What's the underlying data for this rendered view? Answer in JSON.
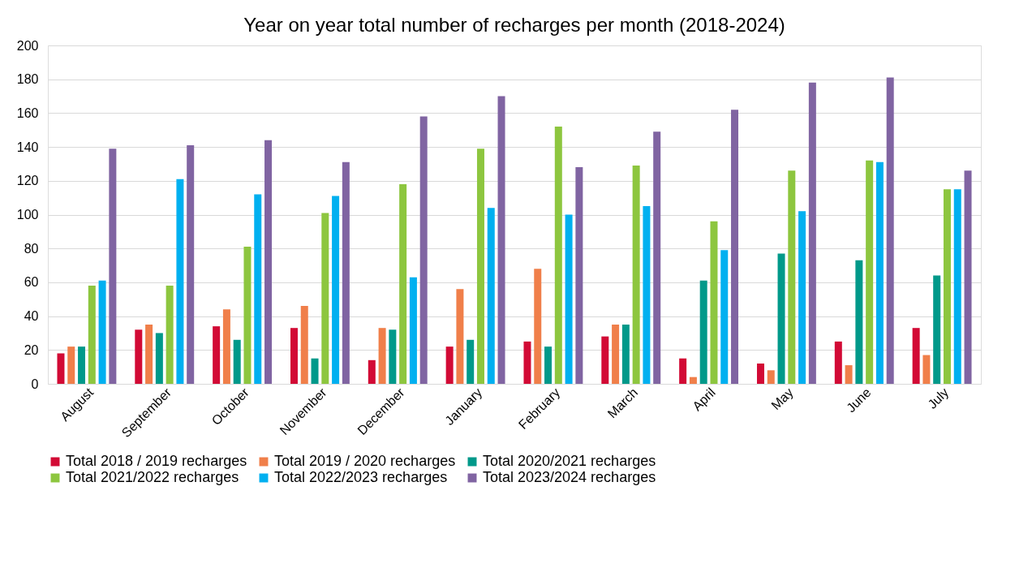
{
  "chart_data": {
    "type": "bar",
    "title": "Year on year total number of recharges per month (2018-2024)",
    "categories": [
      "August",
      "September",
      "October",
      "November",
      "December",
      "January",
      "February",
      "March",
      "April",
      "May",
      "June",
      "July"
    ],
    "series": [
      {
        "name": "Total 2018 / 2019  recharges",
        "color": "#d20a35",
        "values": [
          18,
          32,
          34,
          33,
          14,
          22,
          25,
          28,
          15,
          12,
          25,
          33
        ]
      },
      {
        "name": "Total 2019 / 2020  recharges",
        "color": "#f07f4a",
        "values": [
          22,
          35,
          44,
          46,
          33,
          56,
          68,
          35,
          4,
          8,
          11,
          17
        ]
      },
      {
        "name": "Total 2020/2021  recharges",
        "color": "#00998a",
        "values": [
          22,
          30,
          26,
          15,
          32,
          26,
          22,
          35,
          61,
          77,
          73,
          64
        ]
      },
      {
        "name": "Total 2021/2022  recharges",
        "color": "#8dc63f",
        "values": [
          58,
          58,
          81,
          101,
          118,
          139,
          152,
          129,
          96,
          126,
          132,
          115
        ]
      },
      {
        "name": "Total 2022/2023  recharges",
        "color": "#00b0f0",
        "values": [
          61,
          121,
          112,
          111,
          63,
          104,
          100,
          105,
          79,
          102,
          131,
          115
        ]
      },
      {
        "name": "Total 2023/2024  recharges",
        "color": "#8064a2",
        "values": [
          139,
          141,
          144,
          131,
          158,
          170,
          128,
          149,
          162,
          178,
          181,
          126
        ]
      }
    ],
    "ylim": [
      0,
      200
    ],
    "yticks": [
      0,
      20,
      40,
      60,
      80,
      100,
      120,
      140,
      160,
      180,
      200
    ],
    "grid": "y",
    "legend": "bottom"
  }
}
